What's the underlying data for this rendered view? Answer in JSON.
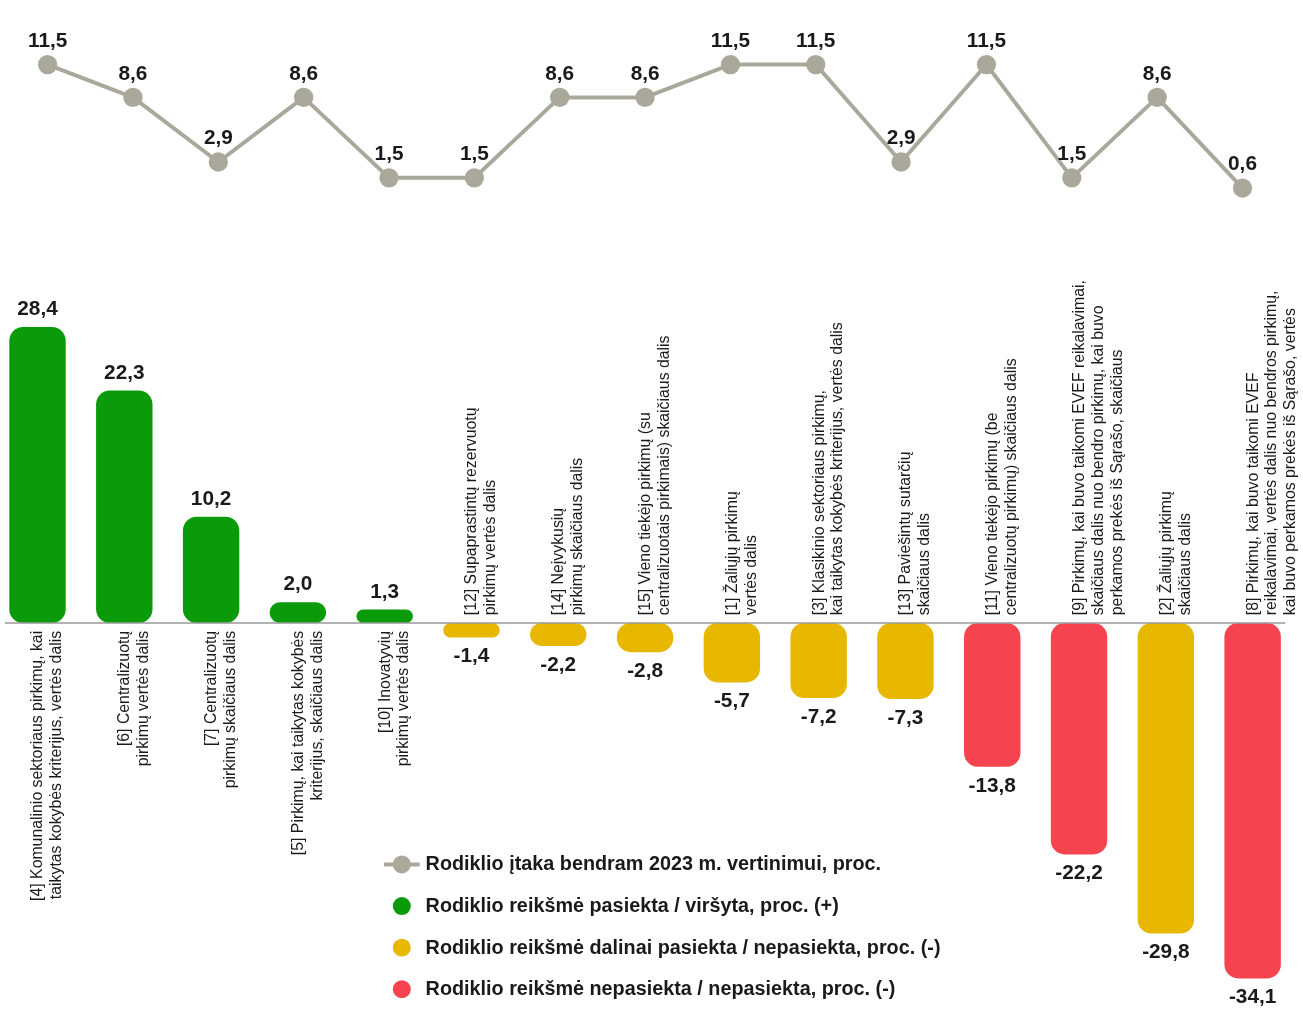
{
  "chart_data": [
    {
      "type": "line",
      "categories": [
        null,
        null,
        null,
        null,
        null,
        null,
        null,
        null,
        null,
        null,
        null,
        null,
        null,
        null,
        null
      ],
      "series": [
        {
          "name": "Rodiklio įtaka bendram 2023 m. vertinimui, proc.",
          "color": "#aaa89a",
          "marker": "circle",
          "values": [
            11.5,
            8.6,
            2.9,
            8.6,
            1.5,
            1.5,
            8.6,
            8.6,
            11.5,
            11.5,
            2.9,
            11.5,
            1.5,
            8.6,
            0.6
          ],
          "value_labels": [
            "11,5",
            "8,6",
            "2,9",
            "8,6",
            "1,5",
            "1,5",
            "8,6",
            "8,6",
            "11,5",
            "11,5",
            "2,9",
            "11,5",
            "1,5",
            "8,6",
            "0,6"
          ]
        }
      ]
    },
    {
      "type": "bar",
      "legend": "bottom",
      "categories": [
        "[4] Komunalinio sektoriaus pirkimų, kai\ntaikytas kokybės kriterijus, vertės dalis",
        "[6] Centralizuotų\npirkimų vertės dalis",
        "[7] Centralizuotų\npirkimų skaičiaus dalis",
        "[5] Pirkimų, kai taikytas kokybės\nkriterijus, skaičiaus dalis",
        "[10] Inovatyvių\npirkimų vertės dalis",
        "[12] Supaprastintų rezervuotų\npirkimų vertės dalis",
        "[14] Neįvykusių\npirkimų skaičiaus dalis",
        "[15] Vieno tiekėjo pirkimų (su\ncentralizuotais pirkimais) skaičiaus dalis",
        "[1] Žaliųjų pirkimų\nvertės dalis",
        "[3] Klasikinio sektoriaus pirkimų,\nkai taikytas kokybės kriterijus, vertės dalis",
        "[13] Paviešintų sutarčių\nskaičiaus dalis",
        "[11] Vieno tiekėjo pirkimų (be\ncentralizuotų pirkimų) skaičiaus dalis",
        "[9] Pirkimų, kai buvo taikomi EVEF reikalavimai,\nskaičiaus dalis nuo bendro pirkimų, kai buvo\nperkamos prekės iš Sąrašo, skaičiaus",
        "[2] Žaliųjų pirkimų\nskaičiaus dalis",
        "[8] Pirkimų, kai buvo taikomi EVEF\nreikalavimai, vertės dalis nuo bendros pirkimų,\nkai buvo perkamos prekės iš Sąrašo, vertės"
      ],
      "series": [
        {
          "name": "Rodiklio reikšmė pasiekta / viršyta, proc. (+)",
          "color": "#0a9a0a",
          "values": [
            28.4,
            22.3,
            10.2,
            2.0,
            1.3,
            null,
            null,
            null,
            null,
            null,
            null,
            null,
            null,
            null,
            null
          ],
          "value_labels": [
            "28,4",
            "22,3",
            "10,2",
            "2,0",
            "1,3",
            null,
            null,
            null,
            null,
            null,
            null,
            null,
            null,
            null,
            null
          ]
        },
        {
          "name": "Rodiklio reikšmė dalinai pasiekta / nepasiekta, proc. (-)",
          "color": "#e8b800",
          "values": [
            null,
            null,
            null,
            null,
            null,
            -1.4,
            -2.2,
            -2.8,
            -5.7,
            -7.2,
            -7.3,
            null,
            null,
            -29.8,
            null
          ],
          "value_labels": [
            null,
            null,
            null,
            null,
            null,
            "-1,4",
            "-2,2",
            "-2,8",
            "-5,7",
            "-7,2",
            "-7,3",
            null,
            null,
            "-29,8",
            null
          ]
        },
        {
          "name": "Rodiklio reikšmė nepasiekta / nepasiekta, proc. (-)",
          "color": "#f5444f",
          "values": [
            null,
            null,
            null,
            null,
            null,
            null,
            null,
            null,
            null,
            null,
            null,
            -13.8,
            -22.2,
            null,
            -34.1
          ],
          "value_labels": [
            null,
            null,
            null,
            null,
            null,
            null,
            null,
            null,
            null,
            null,
            null,
            "-13,8",
            "-22,2",
            null,
            "-34,1"
          ]
        }
      ]
    }
  ]
}
